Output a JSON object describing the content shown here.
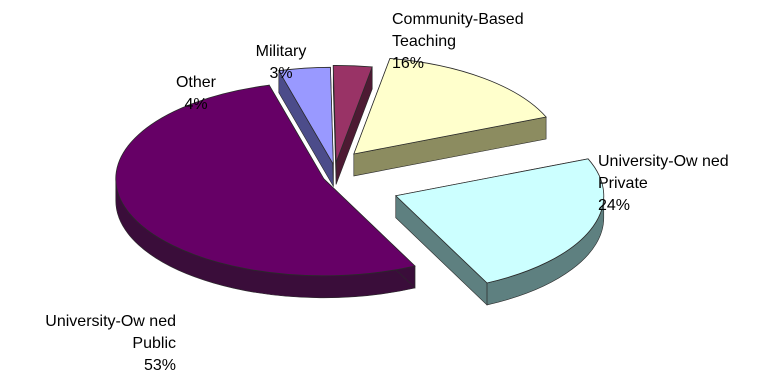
{
  "chart_data": {
    "type": "pie",
    "style": "3d-exploded",
    "title": "",
    "slices": [
      {
        "name_lines": [
          "Community-Based",
          "Teaching"
        ],
        "value": 16,
        "percent_label": "16%",
        "color": "#FFFFCC",
        "side_color": "#8C8C60"
      },
      {
        "name_lines": [
          "University-Ow ned",
          "Private"
        ],
        "value": 24,
        "percent_label": "24%",
        "color": "#CCFFFF",
        "side_color": "#5E8080"
      },
      {
        "name_lines": [
          "University-Ow ned",
          "Public"
        ],
        "value": 53,
        "percent_label": "53%",
        "color": "#660066",
        "side_color": "#3A0D3A"
      },
      {
        "name_lines": [
          "Other"
        ],
        "value": 4,
        "percent_label": "4%",
        "color": "#9999FF",
        "side_color": "#4C4C8A"
      },
      {
        "name_lines": [
          "Military"
        ],
        "value": 3,
        "percent_label": "3%",
        "color": "#993366",
        "side_color": "#4D1A33"
      }
    ]
  }
}
